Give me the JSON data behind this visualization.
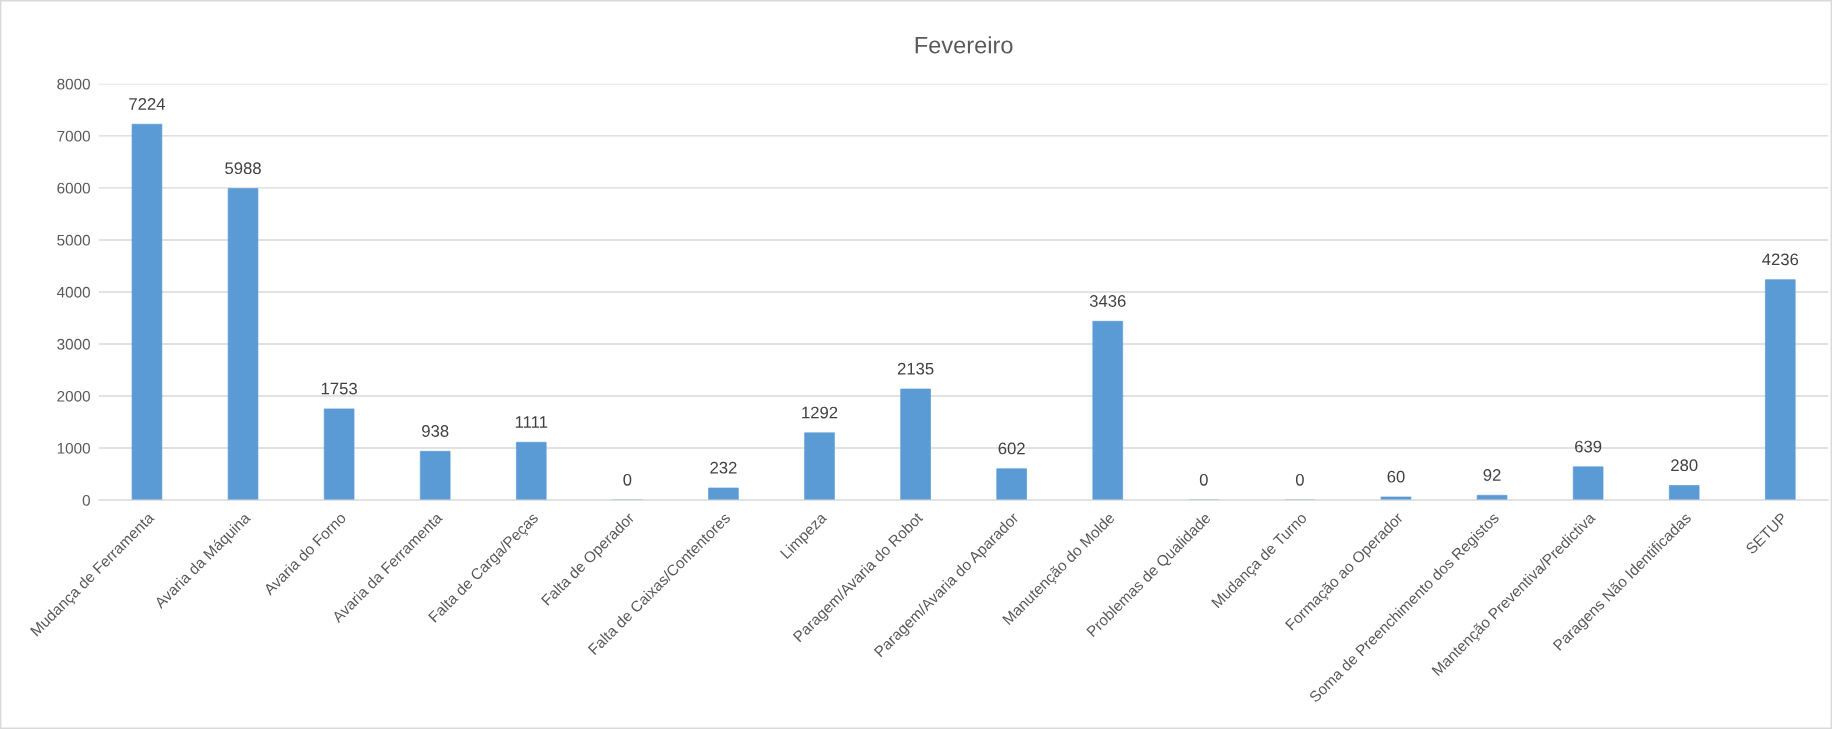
{
  "chart_data": {
    "type": "bar",
    "title": "Fevereiro",
    "categories": [
      "Mudança de Ferramenta",
      "Avaria da Máquina",
      "Avaria do Forno",
      "Avaria da Ferramenta",
      "Falta de Carga/Peças",
      "Falta de Operador",
      "Falta de Caixas/Contentores",
      "Limpeza",
      "Paragem/Avaria do Robot",
      "Paragem/Avaria do Aparador",
      "Manutenção do Molde",
      "Problemas de Qualidade",
      "Mudança de Turno",
      "Formação ao Operador",
      "Soma de Preenchimento dos Registos",
      "Mantenção Preventiva/Predictiva",
      "Paragens Não Identificadas",
      "SETUP"
    ],
    "values": [
      7224,
      5988,
      1753,
      938,
      1111,
      0,
      232,
      1292,
      2135,
      602,
      3436,
      0,
      0,
      60,
      92,
      639,
      280,
      4236
    ],
    "color": "#5b9bd5",
    "ylim": [
      0,
      8000
    ],
    "yticks": [
      0,
      1000,
      2000,
      3000,
      4000,
      5000,
      6000,
      7000,
      8000
    ],
    "grid": "y",
    "data_labels": true,
    "legend": false
  }
}
